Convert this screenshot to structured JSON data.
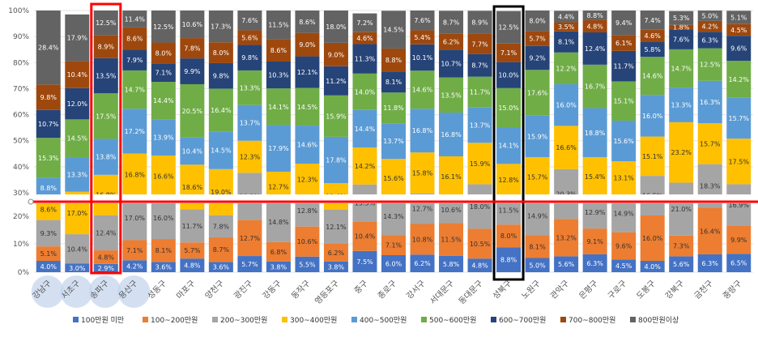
{
  "colors": {
    "series": [
      "#4472C4",
      "#ED7D31",
      "#A5A5A5",
      "#FFC000",
      "#5B9BD5",
      "#70AD47",
      "#264478",
      "#9E480E",
      "#636363"
    ],
    "red_highlight": "#ff0000",
    "black_highlight": "#000000",
    "category_circle": "#c6d6ee"
  },
  "chart_data": {
    "type": "bar",
    "stacked": true,
    "y_axis": {
      "min": 0,
      "max": 100,
      "unit": "%",
      "tick_labels": [
        "0%",
        "10%",
        "20%",
        "30%",
        "40%",
        "50%",
        "60%",
        "70%",
        "80%",
        "90%",
        "100%"
      ],
      "axis_break": {
        "between": [
          "20%",
          "30%"
        ],
        "note": "upper section shows 30-100%, lower section shows 0-30%"
      }
    },
    "categories": [
      "강남구",
      "서초구",
      "송파구",
      "용산구",
      "성동구",
      "마포구",
      "양천구",
      "광진구",
      "강동구",
      "동작구",
      "영등포구",
      "중구",
      "종로구",
      "강서구",
      "서대문구",
      "동대문구",
      "성북구",
      "노원구",
      "관악구",
      "은평구",
      "구로구",
      "도봉구",
      "강북구",
      "금천구",
      "중랑구"
    ],
    "series": [
      {
        "name": "100만원 미만",
        "values": [
          4.0,
          3.0,
          2.9,
          4.2,
          3.6,
          4.8,
          3.6,
          5.7,
          3.8,
          5.5,
          3.8,
          7.5,
          6.0,
          6.2,
          5.8,
          4.8,
          8.8,
          5.0,
          5.6,
          6.3,
          4.5,
          4.0,
          5.6,
          6.3,
          6.5
        ]
      },
      {
        "name": "100~200만원",
        "values": [
          5.1,
          null,
          4.8,
          7.1,
          8.1,
          5.7,
          8.7,
          12.7,
          6.8,
          10.6,
          6.2,
          10.4,
          7.1,
          10.8,
          11.5,
          10.5,
          8.0,
          8.1,
          13.2,
          9.1,
          9.6,
          16.0,
          7.3,
          16.4,
          9.9
        ]
      },
      {
        "name": "200~300만원",
        "values": [
          9.3,
          10.4,
          12.4,
          17.0,
          16.0,
          11.7,
          7.8,
          19.3,
          14.8,
          12.8,
          12.1,
          15.3,
          14.3,
          12.7,
          10.6,
          18.0,
          11.5,
          14.9,
          20.3,
          12.9,
          14.9,
          16.5,
          21.0,
          18.3,
          16.9
        ]
      },
      {
        "name": "300~400만원",
        "values": [
          8.6,
          17.0,
          16.8,
          16.8,
          16.6,
          18.6,
          19.0,
          12.3,
          12.7,
          12.3,
          11.6,
          14.2,
          15.6,
          15.8,
          16.1,
          15.9,
          12.8,
          15.7,
          16.6,
          15.4,
          13.1,
          15.1,
          23.2,
          15.7,
          17.5
        ]
      },
      {
        "name": "400~500만원",
        "values": [
          8.8,
          13.3,
          13.8,
          17.2,
          13.9,
          10.4,
          14.5,
          13.7,
          17.9,
          14.6,
          17.8,
          14.4,
          13.7,
          16.8,
          16.8,
          13.7,
          14.1,
          15.9,
          16.0,
          18.8,
          15.6,
          16.0,
          13.3,
          16.3,
          15.7
        ]
      },
      {
        "name": "500~600만원",
        "values": [
          15.3,
          14.5,
          17.5,
          14.7,
          14.4,
          20.5,
          16.4,
          13.3,
          14.1,
          14.5,
          15.9,
          14.0,
          11.8,
          14.6,
          13.5,
          11.7,
          15.0,
          17.6,
          12.2,
          16.7,
          15.1,
          14.6,
          14.7,
          12.5,
          14.2
        ]
      },
      {
        "name": "600~700만원",
        "values": [
          10.7,
          12.0,
          13.5,
          7.9,
          7.1,
          9.9,
          9.8,
          9.8,
          10.3,
          12.1,
          11.2,
          11.3,
          8.1,
          10.1,
          10.7,
          8.7,
          10.0,
          9.2,
          8.1,
          12.4,
          11.7,
          5.8,
          7.6,
          6.3,
          9.6
        ]
      },
      {
        "name": "700~800만원",
        "values": [
          9.8,
          10.4,
          8.9,
          8.6,
          8.0,
          7.8,
          8.0,
          5.6,
          8.6,
          9.0,
          9.0,
          4.6,
          8.8,
          5.4,
          6.2,
          7.7,
          7.1,
          5.7,
          3.5,
          4.8,
          6.1,
          4.6,
          1.8,
          4.2,
          4.5
        ]
      },
      {
        "name": "800만원이상",
        "values": [
          28.4,
          17.9,
          12.5,
          11.4,
          12.5,
          10.6,
          17.3,
          7.6,
          11.5,
          8.6,
          18.0,
          7.2,
          14.5,
          7.6,
          8.7,
          8.9,
          12.5,
          8.0,
          4.4,
          8.8,
          9.4,
          7.4,
          5.3,
          5.0,
          5.1
        ]
      }
    ],
    "legend": [
      "100만원 미만",
      "100~200만원",
      "200~300만원",
      "300~400만원",
      "400~500만원",
      "500~600만원",
      "600~700만원",
      "700~800만원",
      "800만원이상"
    ],
    "legend_position": "bottom",
    "grid": true,
    "highlights": {
      "red_box_category": "송파구",
      "black_box_category": "성북구",
      "circled_categories": [
        "강남구",
        "서초구",
        "송파구",
        "용산구"
      ],
      "red_line_value": 20
    }
  }
}
